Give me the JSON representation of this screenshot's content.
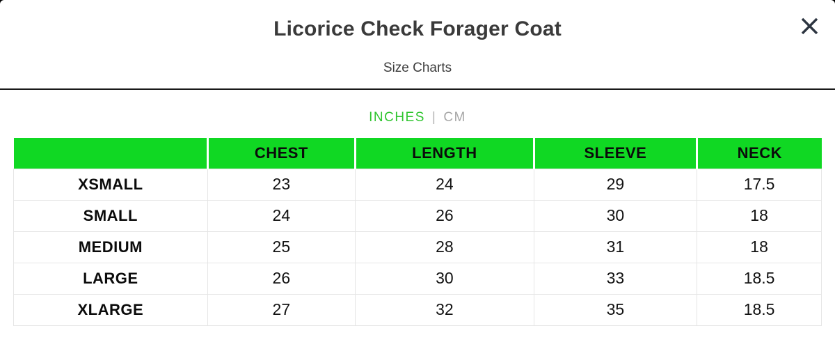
{
  "modal": {
    "title": "Licorice Check Forager Coat",
    "subtitle": "Size Charts"
  },
  "close_icon": "close",
  "units_toggle": {
    "separator": "|",
    "options": [
      {
        "label": "INCHES",
        "selected": true
      },
      {
        "label": "CM",
        "selected": false
      }
    ]
  },
  "colors": {
    "header_green": "#10d823",
    "inches_green": "#2fc52f",
    "cm_gray": "#a8a8a8",
    "title_text": "#3a3a3a",
    "body_text": "#121212",
    "close_icon": "#2c3440",
    "divider": "#1a1a1a",
    "grid_border": "#e5e5e5",
    "backdrop": "#000000"
  },
  "size_chart": {
    "columns": [
      "",
      "CHEST",
      "LENGTH",
      "SLEEVE",
      "NECK"
    ],
    "column_widths_pct": [
      24,
      18.3,
      22.1,
      20.2,
      15.4
    ],
    "rows": [
      {
        "size": "XSMALL",
        "values": [
          "23",
          "24",
          "29",
          "17.5"
        ]
      },
      {
        "size": "SMALL",
        "values": [
          "24",
          "26",
          "30",
          "18"
        ]
      },
      {
        "size": "MEDIUM",
        "values": [
          "25",
          "28",
          "31",
          "18"
        ]
      },
      {
        "size": "LARGE",
        "values": [
          "26",
          "30",
          "33",
          "18.5"
        ]
      },
      {
        "size": "XLARGE",
        "values": [
          "27",
          "32",
          "35",
          "18.5"
        ]
      }
    ]
  }
}
